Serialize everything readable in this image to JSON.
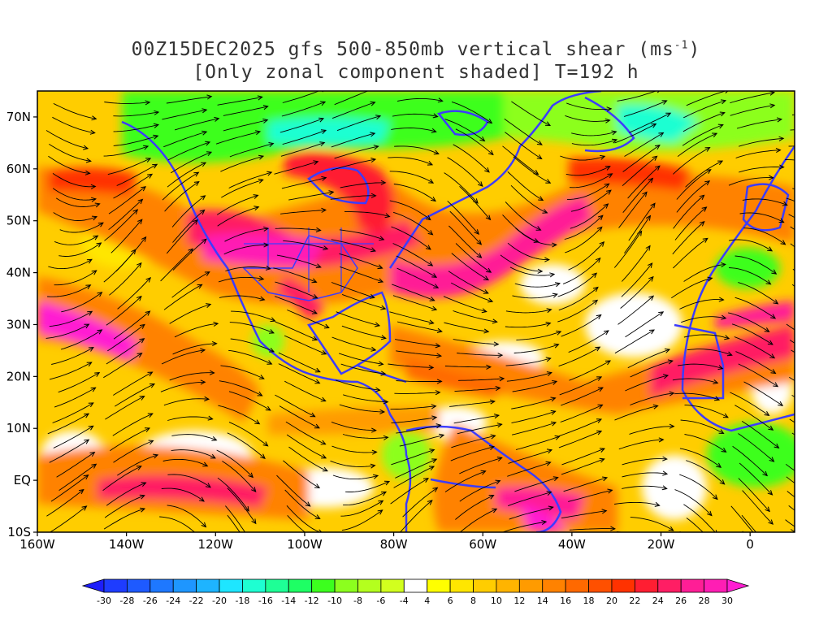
{
  "title": {
    "line1": "00Z15DEC2025 gfs 500-850mb vertical shear (ms",
    "line1_sup": "-1",
    "line1_end": ")",
    "line2": "[Only zonal component shaded] T=192 h"
  },
  "axes": {
    "lat_labels": [
      "70N",
      "60N",
      "50N",
      "40N",
      "30N",
      "20N",
      "10N",
      "EQ",
      "10S"
    ],
    "lon_labels": [
      "160W",
      "140W",
      "120W",
      "100W",
      "80W",
      "60W",
      "40W",
      "20W",
      "0"
    ],
    "lat_range": [
      -10,
      75
    ],
    "lon_range": [
      -160,
      10
    ]
  },
  "colorbar": {
    "labels": [
      "-30",
      "-28",
      "-26",
      "-24",
      "-22",
      "-20",
      "-18",
      "-16",
      "-14",
      "-12",
      "-10",
      "-8",
      "-6",
      "-4",
      "4",
      "6",
      "8",
      "10",
      "12",
      "14",
      "16",
      "18",
      "20",
      "22",
      "24",
      "26",
      "28",
      "30"
    ],
    "colors": [
      "#1e1efa",
      "#1e3cff",
      "#1e5aff",
      "#1e78ff",
      "#1e96ff",
      "#1eb4ff",
      "#1ee6ff",
      "#1effd2",
      "#1eff96",
      "#1eff64",
      "#3cff1e",
      "#8cff1e",
      "#b4ff1e",
      "#d2ff1e",
      "#ffffff",
      "#ffff00",
      "#ffe600",
      "#ffcd00",
      "#ffb400",
      "#ff9b00",
      "#ff8200",
      "#ff6900",
      "#ff5000",
      "#ff3200",
      "#ff1e32",
      "#ff1e64",
      "#ff1e96",
      "#ff1eb4",
      "#ff1ed2"
    ]
  },
  "legend_style": {
    "land_outline": "#3c3cff",
    "streamline": "#000000"
  }
}
